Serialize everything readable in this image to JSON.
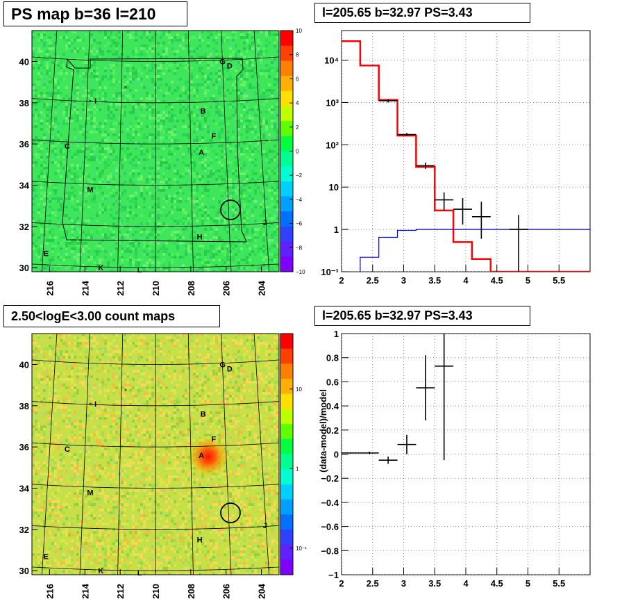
{
  "titles": {
    "tl": "PS map b=36 l=210",
    "tr": "l=205.65 b=32.97 PS=3.43",
    "bl": "2.50<logE<3.00 count maps",
    "br": "l=205.65 b=32.97 PS=3.43"
  },
  "map_axes": {
    "x_ticks": [
      "216",
      "214",
      "212",
      "210",
      "208",
      "206",
      "204"
    ],
    "y_ticks": [
      "40",
      "38",
      "36",
      "34",
      "32",
      "30"
    ]
  },
  "source_labels": [
    "G",
    "D",
    "I",
    "B",
    "F",
    "C",
    "A",
    "M",
    "J",
    "H",
    "E",
    "K",
    "L"
  ],
  "colorbar_top": {
    "ticks": [
      "10",
      "8",
      "6",
      "4",
      "2",
      "0",
      "−2",
      "−4",
      "−6",
      "−8",
      "−10"
    ],
    "colors": [
      "#ff0000",
      "#ff4000",
      "#ff8000",
      "#ffb000",
      "#ffe000",
      "#c0ff00",
      "#60ff00",
      "#00ff40",
      "#00ff90",
      "#00ffd0",
      "#00d0ff",
      "#00a0ff",
      "#0070ff",
      "#3040ff",
      "#6020ff",
      "#8000ff"
    ]
  },
  "colorbar_bottom": {
    "ticks": [
      "10",
      "1",
      "10⁻¹"
    ],
    "colors": [
      "#ff0000",
      "#ff4000",
      "#ff8000",
      "#ffb000",
      "#ffe000",
      "#c0ff00",
      "#60ff00",
      "#00ff40",
      "#00ff90",
      "#00ffd0",
      "#00d0ff",
      "#00a0ff",
      "#0070ff",
      "#3040ff",
      "#6020ff",
      "#8000ff"
    ]
  },
  "chart_data": [
    {
      "type": "heatmap",
      "title": "PS map b=36 l=210",
      "xlim": [
        217,
        203
      ],
      "ylim": [
        29.8,
        41.5
      ],
      "xticks": [
        216,
        214,
        212,
        210,
        208,
        206,
        204
      ],
      "yticks": [
        40,
        38,
        36,
        34,
        32,
        30
      ],
      "zlim": [
        -10,
        10
      ],
      "background": "#3ee65a",
      "sources": [
        {
          "name": "G",
          "l": 206.2,
          "b": 40.0
        },
        {
          "name": "D",
          "l": 205.8,
          "b": 39.8
        },
        {
          "name": "I",
          "l": 213.4,
          "b": 38.1
        },
        {
          "name": "B",
          "l": 207.3,
          "b": 37.6
        },
        {
          "name": "F",
          "l": 206.7,
          "b": 36.4
        },
        {
          "name": "C",
          "l": 215.0,
          "b": 35.9
        },
        {
          "name": "A",
          "l": 207.4,
          "b": 35.6
        },
        {
          "name": "M",
          "l": 213.7,
          "b": 33.8
        },
        {
          "name": "J",
          "l": 203.8,
          "b": 32.2
        },
        {
          "name": "H",
          "l": 207.5,
          "b": 31.5
        },
        {
          "name": "E",
          "l": 216.2,
          "b": 30.7
        },
        {
          "name": "K",
          "l": 213.1,
          "b": 30.0
        },
        {
          "name": "L",
          "l": 210.9,
          "b": 29.9
        }
      ],
      "circle": {
        "l": 205.65,
        "b": 32.97
      }
    },
    {
      "type": "line",
      "title": "l=205.65 b=32.97 PS=3.43",
      "xlim": [
        2.0,
        6.0
      ],
      "ylim": [
        0.1,
        50000
      ],
      "yscale": "log",
      "xticks": [
        2,
        2.5,
        3,
        3.5,
        4,
        4.5,
        5,
        5.5
      ],
      "yticks": [
        0.1,
        1,
        10,
        100,
        1000,
        10000
      ],
      "ytick_labels": [
        "10⁻¹",
        "1",
        "10",
        "10²",
        "10³",
        "10⁴"
      ],
      "grid": true,
      "bin_edges": [
        2.0,
        2.3,
        2.6,
        2.9,
        3.2,
        3.5,
        3.8,
        4.1,
        4.4,
        4.7,
        5.0,
        5.3,
        5.6,
        5.9,
        6.0
      ],
      "series": [
        {
          "color": "#ff0000",
          "values": [
            28000,
            7500,
            1150,
            165,
            30,
            2.8,
            0.5,
            0.2,
            0.1,
            0.1,
            0.1,
            0.1,
            0.1,
            0.1
          ]
        },
        {
          "color": "#0000ff",
          "values": [
            0.08,
            0.22,
            0.65,
            0.95,
            1,
            1,
            1,
            1,
            1,
            1,
            1,
            1,
            1,
            1
          ]
        }
      ],
      "data_points": [
        {
          "x": 2.75,
          "xerr": 0.15,
          "y": 1100,
          "ylo": 1000,
          "yhi": 1200
        },
        {
          "x": 3.05,
          "xerr": 0.15,
          "y": 175,
          "ylo": 160,
          "yhi": 190
        },
        {
          "x": 3.35,
          "xerr": 0.15,
          "y": 32,
          "ylo": 27,
          "yhi": 38
        },
        {
          "x": 3.65,
          "xerr": 0.15,
          "y": 5,
          "ylo": 2.8,
          "yhi": 7.5
        },
        {
          "x": 3.95,
          "xerr": 0.15,
          "y": 3,
          "ylo": 1.3,
          "yhi": 5.5
        },
        {
          "x": 4.25,
          "xerr": 0.15,
          "y": 2,
          "ylo": 0.6,
          "yhi": 4.5
        },
        {
          "x": 4.85,
          "xerr": 0.15,
          "y": 1,
          "ylo": 0.1,
          "yhi": 2.2
        }
      ]
    },
    {
      "type": "heatmap",
      "title": "2.50<logE<3.00 count maps",
      "xlim": [
        217,
        203
      ],
      "ylim": [
        29.8,
        41.5
      ],
      "xticks": [
        216,
        214,
        212,
        210,
        208,
        206,
        204
      ],
      "yticks": [
        40,
        38,
        36,
        34,
        32,
        30
      ],
      "zscale": "log",
      "background": "#c8e048",
      "hotspot": {
        "l": 207.2,
        "b": 35.7
      },
      "circle": {
        "l": 205.65,
        "b": 32.97
      }
    },
    {
      "type": "scatter",
      "title": "l=205.65 b=32.97 PS=3.43",
      "ylabel": "(data-model)/model",
      "xlim": [
        2.0,
        6.0
      ],
      "ylim": [
        -1,
        1
      ],
      "xticks": [
        2,
        2.5,
        3,
        3.5,
        4,
        4.5,
        5,
        5.5
      ],
      "yticks": [
        -1,
        -0.8,
        -0.6,
        -0.4,
        -0.2,
        0,
        0.2,
        0.4,
        0.6,
        0.8,
        1
      ],
      "grid": true,
      "points": [
        {
          "x": 2.15,
          "xerr": 0.15,
          "y": 0.01,
          "yerr": 0.005
        },
        {
          "x": 2.45,
          "xerr": 0.15,
          "y": 0.01,
          "yerr": 0.01
        },
        {
          "x": 2.75,
          "xerr": 0.15,
          "y": -0.05,
          "yerr": 0.03
        },
        {
          "x": 3.05,
          "xerr": 0.15,
          "y": 0.08,
          "yerr": 0.08
        },
        {
          "x": 3.35,
          "xerr": 0.15,
          "y": 0.55,
          "yerr": 0.27
        },
        {
          "x": 3.65,
          "xerr": 0.15,
          "y": 0.73,
          "yerr": 0.78
        }
      ]
    }
  ]
}
